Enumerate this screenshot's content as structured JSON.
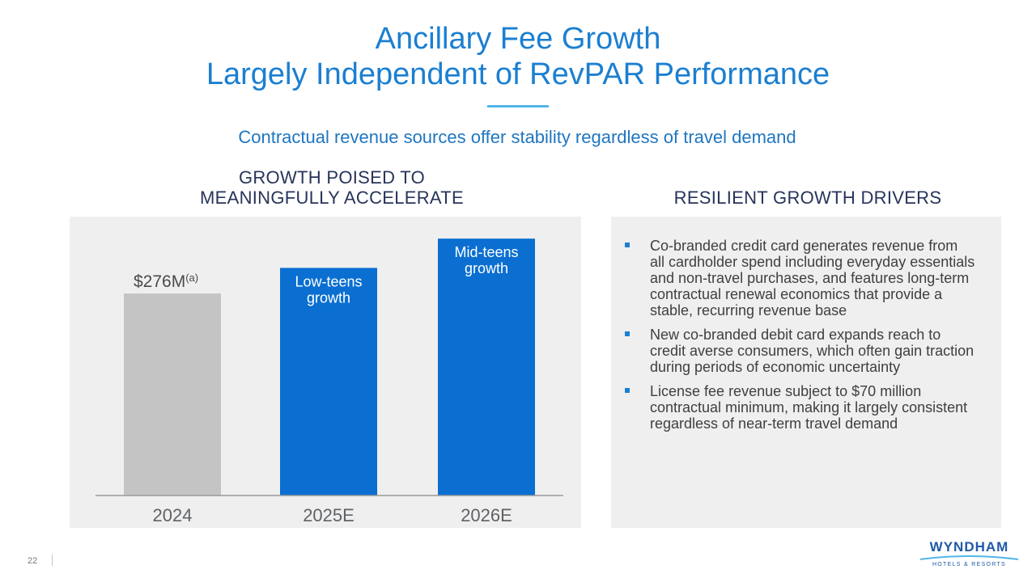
{
  "title": {
    "line1": "Ancillary Fee Growth",
    "line2": "Largely Independent of RevPAR Performance"
  },
  "subtitle": "Contractual revenue sources offer stability regardless of travel demand",
  "left_section": {
    "heading_line1": "GROWTH POISED TO",
    "heading_line2": "MEANINGFULLY ACCELERATE"
  },
  "right_section": {
    "heading": "RESILIENT GROWTH DRIVERS",
    "bullets": [
      "Co-branded credit card generates revenue from all cardholder spend including everyday essentials and non-travel purchases, and features long-term contractual renewal economics that provide a stable, recurring revenue base",
      "New co-branded debit card expands reach to credit averse consumers, which often gain traction during periods of economic uncertainty",
      "License fee revenue subject to $70 million contractual minimum, making it largely consistent regardless of near-term travel demand"
    ]
  },
  "chart_data": {
    "type": "bar",
    "categories": [
      "2024",
      "2025E",
      "2026E"
    ],
    "values": [
      276,
      311,
      351
    ],
    "ylim": [
      0,
      370
    ],
    "bar_colors": [
      "#c4c4c4",
      "#0a6fd1",
      "#0a6fd1"
    ],
    "value_labels": [
      {
        "main": "$276M",
        "sup": "(a)"
      },
      null,
      null
    ],
    "inside_labels": [
      null,
      [
        "Low-teens",
        "growth"
      ],
      [
        "Mid-teens",
        "growth"
      ]
    ],
    "grid": false,
    "legend": "none"
  },
  "footer": {
    "page_number": "22",
    "logo_main": "WYNDHAM",
    "logo_sub": "HOTELS & RESORTS"
  },
  "colors": {
    "title": "#1b7fd1",
    "subtitle": "#1f76c0",
    "heading": "#27345a",
    "panel_bg": "#efefef",
    "accent_bar": "#0a6fd1",
    "base_bar": "#c4c4c4"
  }
}
